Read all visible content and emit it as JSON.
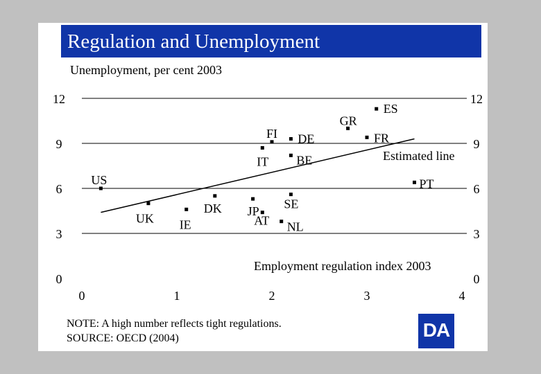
{
  "title": "Regulation and Unemployment",
  "subtitle": "Unemployment, per cent  2003",
  "note": "NOTE: A high number reflects tight regulations.",
  "source": "SOURCE: OECD (2004)",
  "logo_text": "DA",
  "colors": {
    "title_bg": "#1035a8",
    "background": "#c0c0c0",
    "points": "#000000"
  },
  "chart_data": {
    "type": "scatter",
    "xlim": [
      0,
      4
    ],
    "ylim": [
      0,
      12
    ],
    "x_ticks": [
      "0",
      "1",
      "2",
      "3",
      "4"
    ],
    "y_ticks": [
      "0",
      "3",
      "6",
      "9",
      "12"
    ],
    "xlabel": "Employment regulation index 2003",
    "ylabel": "Unemployment, per cent  2003",
    "grid": "horizontal",
    "annotation": "Estimated line",
    "trend_line": {
      "x": [
        0.2,
        3.5
      ],
      "y": [
        4.4,
        9.3
      ]
    },
    "points": [
      {
        "label": "US",
        "x": 0.2,
        "y": 6.0
      },
      {
        "label": "UK",
        "x": 0.7,
        "y": 5.0
      },
      {
        "label": "IE",
        "x": 1.1,
        "y": 4.6
      },
      {
        "label": "DK",
        "x": 1.4,
        "y": 5.5
      },
      {
        "label": "JP",
        "x": 1.8,
        "y": 5.3
      },
      {
        "label": "AT",
        "x": 1.9,
        "y": 4.4
      },
      {
        "label": "SE",
        "x": 2.2,
        "y": 5.6
      },
      {
        "label": "NL",
        "x": 2.1,
        "y": 3.8
      },
      {
        "label": "IT",
        "x": 1.9,
        "y": 8.7
      },
      {
        "label": "FI",
        "x": 2.0,
        "y": 9.1
      },
      {
        "label": "DE",
        "x": 2.2,
        "y": 9.3
      },
      {
        "label": "BE",
        "x": 2.2,
        "y": 8.2
      },
      {
        "label": "GR",
        "x": 2.8,
        "y": 10.0
      },
      {
        "label": "ES",
        "x": 3.1,
        "y": 11.3
      },
      {
        "label": "FR",
        "x": 3.0,
        "y": 9.4
      },
      {
        "label": "PT",
        "x": 3.5,
        "y": 6.4
      }
    ]
  }
}
